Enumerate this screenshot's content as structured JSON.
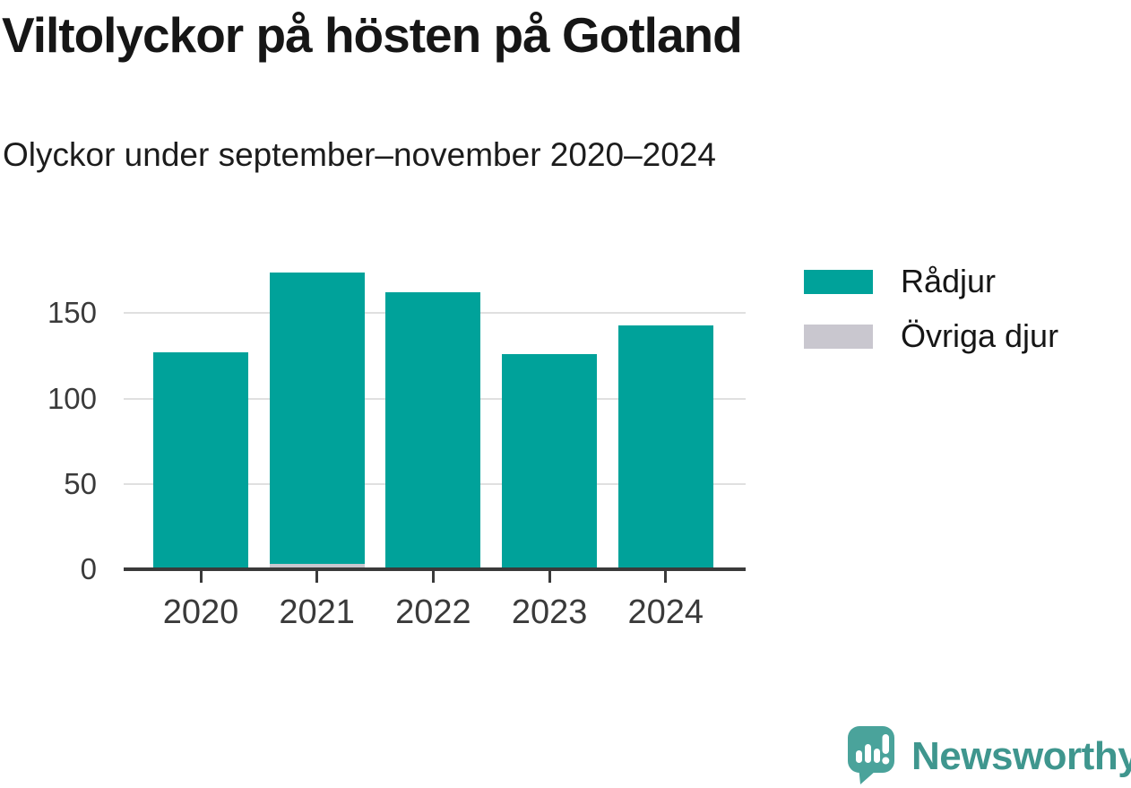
{
  "title": "Viltolyckor på hösten på Gotland",
  "subtitle": "Olyckor under september–november 2020–2024",
  "legend": {
    "items": [
      {
        "label": "Rådjur",
        "color": "#00a29a"
      },
      {
        "label": "Övriga djur",
        "color": "#c9c7cf"
      }
    ]
  },
  "footer": {
    "brand": "Newsworthy"
  },
  "colors": {
    "bar_teal": "#00a29a",
    "bar_gray": "#c9c7cf",
    "gridline": "#e0e0e0",
    "axis": "#3a3a3a",
    "tick_label": "#3a3a3a",
    "text_dark": "#161616",
    "logo_icon_teal": "#4aa39b",
    "logo_text_teal": "#3f968e",
    "logo_glyph_white": "#ffffff"
  },
  "chart_data": {
    "type": "bar",
    "stacked": true,
    "title": "Viltolyckor på hösten på Gotland",
    "subtitle": "Olyckor under september–november 2020–2024",
    "categories": [
      "2020",
      "2021",
      "2022",
      "2023",
      "2024"
    ],
    "series": [
      {
        "name": "Rådjur",
        "color": "#00a29a",
        "values": [
          127,
          171,
          162,
          126,
          143
        ]
      },
      {
        "name": "Övriga djur",
        "color": "#c9c7cf",
        "values": [
          0,
          3,
          0,
          0,
          0
        ]
      }
    ],
    "xlabel": "",
    "ylabel": "",
    "yticks": [
      0,
      50,
      100,
      150
    ],
    "ylim": [
      0,
      180
    ],
    "grid": true,
    "legend_position": "right"
  }
}
